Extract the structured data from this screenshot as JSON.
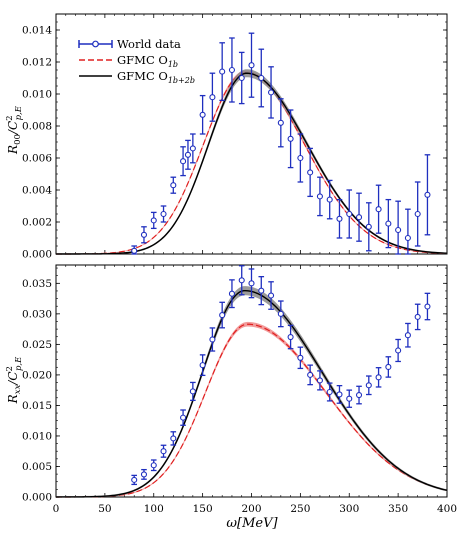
{
  "colors": {
    "data": "#1f2fbf",
    "o1b": "#e02020",
    "o1b2b": "#000000",
    "band_o1b2b": "#8a8a8a",
    "band_o1b": "#f08a8a"
  },
  "legend": {
    "world": "World data",
    "o1b": "GFMC O",
    "o1b_sub": "1b",
    "o1b2b": "GFMC O",
    "o1b2b_sub": "1b+2b",
    "placement": "top-left"
  },
  "chart_data": [
    {
      "type": "line",
      "ylabel": {
        "main": "R",
        "sub": "00",
        "denom": "/C",
        "sup": "2",
        "denom_sub": "p,E"
      },
      "xlim": [
        0,
        400
      ],
      "ylim": [
        0,
        0.015
      ],
      "yticks": [
        "0.000",
        "0.002",
        "0.004",
        "0.006",
        "0.008",
        "0.010",
        "0.012",
        "0.014"
      ],
      "ytick_values": [
        0,
        0.002,
        0.004,
        0.006,
        0.008,
        0.01,
        0.012,
        0.014
      ],
      "grid": false,
      "data": {
        "omega": [
          80,
          90,
          100,
          110,
          120,
          130,
          135,
          140,
          150,
          160,
          170,
          180,
          190,
          200,
          210,
          220,
          230,
          240,
          250,
          260,
          270,
          280,
          290,
          300,
          310,
          320,
          330,
          340,
          350,
          360,
          370,
          380
        ],
        "y": [
          0.0002,
          0.0012,
          0.0021,
          0.0025,
          0.0043,
          0.0058,
          0.0062,
          0.0066,
          0.0087,
          0.0098,
          0.0114,
          0.0115,
          0.011,
          0.0118,
          0.011,
          0.0101,
          0.0082,
          0.0072,
          0.006,
          0.0051,
          0.0036,
          0.0034,
          0.0022,
          0.0025,
          0.0023,
          0.0017,
          0.0028,
          0.0019,
          0.0015,
          0.001,
          0.0025,
          0.0037
        ],
        "err": [
          0.0003,
          0.0005,
          0.0005,
          0.0005,
          0.0005,
          0.0009,
          0.0009,
          0.0009,
          0.0012,
          0.0015,
          0.0018,
          0.002,
          0.0016,
          0.002,
          0.0018,
          0.0016,
          0.0015,
          0.0018,
          0.0015,
          0.0015,
          0.0012,
          0.0012,
          0.0012,
          0.0015,
          0.0015,
          0.0015,
          0.0015,
          0.0015,
          0.0018,
          0.0018,
          0.002,
          0.0025
        ]
      },
      "curve_o1b": {
        "peak_x": 194,
        "peak_y": 0.01135,
        "sigma_left": 43,
        "sigma_right": 60,
        "band": 0.0001
      },
      "curve_o1b2b": {
        "peak_x": 195,
        "peak_y": 0.0113,
        "sigma_left": 39,
        "sigma_right": 62,
        "band": 0.0002
      }
    },
    {
      "type": "line",
      "ylabel": {
        "main": "R",
        "sub": "xx",
        "denom": "/C",
        "sup": "2",
        "denom_sub": "p,E"
      },
      "xlabel": "ω[MeV]",
      "xlim": [
        0,
        400
      ],
      "ylim": [
        0,
        0.038
      ],
      "xticks": [
        "0",
        "50",
        "100",
        "150",
        "200",
        "250",
        "300",
        "350",
        "400"
      ],
      "xtick_values": [
        0,
        50,
        100,
        150,
        200,
        250,
        300,
        350,
        400
      ],
      "yticks": [
        "0.000",
        "0.005",
        "0.010",
        "0.015",
        "0.020",
        "0.025",
        "0.030",
        "0.035"
      ],
      "ytick_values": [
        0,
        0.005,
        0.01,
        0.015,
        0.02,
        0.025,
        0.03,
        0.035
      ],
      "grid": false,
      "data": {
        "omega": [
          80,
          90,
          100,
          110,
          120,
          130,
          140,
          150,
          160,
          170,
          180,
          190,
          200,
          210,
          220,
          230,
          240,
          250,
          260,
          270,
          280,
          290,
          300,
          310,
          320,
          330,
          340,
          350,
          360,
          370,
          380
        ],
        "y": [
          0.0028,
          0.0037,
          0.0052,
          0.0075,
          0.0096,
          0.013,
          0.0173,
          0.0216,
          0.0258,
          0.0298,
          0.0333,
          0.0355,
          0.035,
          0.0338,
          0.033,
          0.03,
          0.0262,
          0.0228,
          0.02,
          0.0191,
          0.0172,
          0.0168,
          0.0161,
          0.0167,
          0.0183,
          0.0196,
          0.0213,
          0.024,
          0.0265,
          0.0295,
          0.0312
        ]
      },
      "curve_o1b": {
        "peak_x": 196,
        "peak_y": 0.0283,
        "sigma_left": 43,
        "sigma_right": 80,
        "band": 0.0003
      },
      "curve_o1b2b": {
        "peak_x": 193,
        "peak_y": 0.0338,
        "sigma_left": 43,
        "sigma_right": 79,
        "band": 0.0006
      }
    }
  ]
}
